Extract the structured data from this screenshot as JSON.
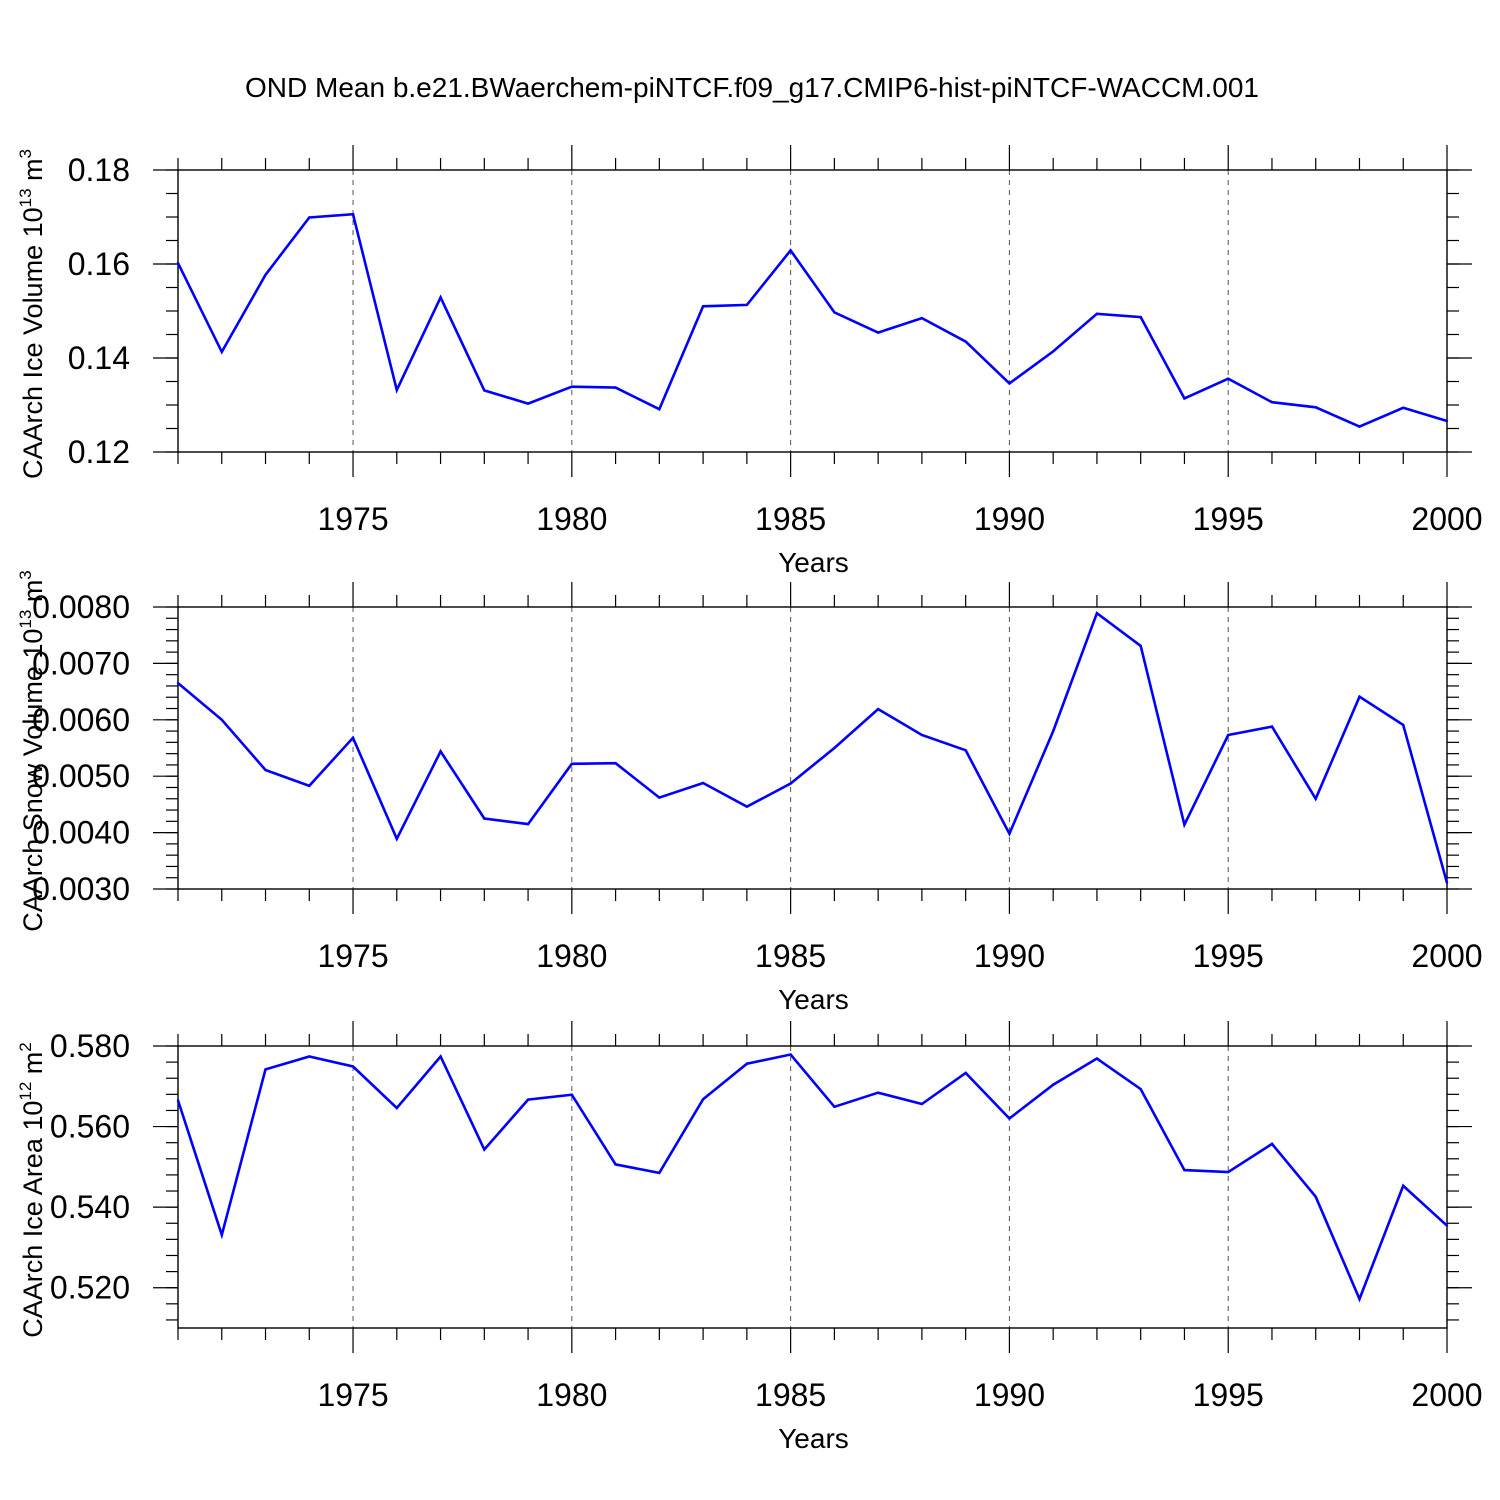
{
  "title": "OND Mean b.e21.BWaerchem-piNTCF.f09_g17.CMIP6-hist-piNTCF-WACCM.001",
  "colors": {
    "line": "#0000ff",
    "frame": "#000000",
    "grid": "#555555"
  },
  "chart_data": [
    {
      "type": "line",
      "ylabel_main": "CAArch Ice Volume 10",
      "ylabel_exp": "13",
      "ylabel_unit": " m",
      "ylabel_unit_exp": "3",
      "xlabel": "Years",
      "xlim": [
        1971,
        2000
      ],
      "ylim": [
        0.12,
        0.18
      ],
      "yticks": [
        0.12,
        0.14,
        0.16,
        0.18
      ],
      "ytick_labels": [
        "0.12",
        "0.14",
        "0.16",
        "0.18"
      ],
      "yminor_step": 0.005,
      "xticks": [
        1975,
        1980,
        1985,
        1990,
        1995,
        2000
      ],
      "xtick_labels": [
        "1975",
        "1980",
        "1985",
        "1990",
        "1995",
        "2000"
      ],
      "grid_x": [
        1975,
        1980,
        1985,
        1990,
        1995
      ],
      "x": [
        1971,
        1972,
        1973,
        1974,
        1975,
        1976,
        1977,
        1978,
        1979,
        1980,
        1981,
        1982,
        1983,
        1984,
        1985,
        1986,
        1987,
        1988,
        1989,
        1990,
        1991,
        1992,
        1993,
        1994,
        1995,
        1996,
        1997,
        1998,
        1999,
        2000
      ],
      "series": [
        {
          "name": "CAArch Ice Volume",
          "values": [
            0.1602,
            0.1413,
            0.1577,
            0.1699,
            0.1706,
            0.1332,
            0.1529,
            0.1331,
            0.1303,
            0.1339,
            0.1337,
            0.1291,
            0.151,
            0.1513,
            0.1629,
            0.1497,
            0.1454,
            0.1485,
            0.1435,
            0.1346,
            0.1414,
            0.1494,
            0.1487,
            0.1314,
            0.1356,
            0.1306,
            0.1295,
            0.1254,
            0.1294,
            0.1266
          ]
        }
      ]
    },
    {
      "type": "line",
      "ylabel_main": "CAArch Snow Volume 10",
      "ylabel_exp": "13",
      "ylabel_unit": " m",
      "ylabel_unit_exp": "3",
      "xlabel": "Years",
      "xlim": [
        1971,
        2000
      ],
      "ylim": [
        0.003,
        0.008
      ],
      "yticks": [
        0.003,
        0.004,
        0.005,
        0.006,
        0.007,
        0.008
      ],
      "ytick_labels": [
        "0.0030",
        "0.0040",
        "0.0050",
        "0.0060",
        "0.0070",
        "0.0080"
      ],
      "yminor_step": 0.0002,
      "xticks": [
        1975,
        1980,
        1985,
        1990,
        1995,
        2000
      ],
      "xtick_labels": [
        "1975",
        "1980",
        "1985",
        "1990",
        "1995",
        "2000"
      ],
      "grid_x": [
        1975,
        1980,
        1985,
        1990,
        1995
      ],
      "x": [
        1971,
        1972,
        1973,
        1974,
        1975,
        1976,
        1977,
        1978,
        1979,
        1980,
        1981,
        1982,
        1983,
        1984,
        1985,
        1986,
        1987,
        1988,
        1989,
        1990,
        1991,
        1992,
        1993,
        1994,
        1995,
        1996,
        1997,
        1998,
        1999,
        2000
      ],
      "series": [
        {
          "name": "CAArch Snow Volume",
          "values": [
            0.00665,
            0.006,
            0.00511,
            0.00483,
            0.00568,
            0.00389,
            0.00544,
            0.00425,
            0.00415,
            0.00522,
            0.00523,
            0.00462,
            0.00488,
            0.00446,
            0.00487,
            0.0055,
            0.00619,
            0.00573,
            0.00546,
            0.00398,
            0.0058,
            0.00789,
            0.00731,
            0.00414,
            0.00573,
            0.00588,
            0.0046,
            0.00641,
            0.00591,
            0.00311
          ]
        }
      ]
    },
    {
      "type": "line",
      "ylabel_main": "CAArch Ice Area 10",
      "ylabel_exp": "12",
      "ylabel_unit": " m",
      "ylabel_unit_exp": "2",
      "xlabel": "Years",
      "xlim": [
        1971,
        2000
      ],
      "ylim": [
        0.51,
        0.58
      ],
      "yticks": [
        0.52,
        0.54,
        0.56,
        0.58
      ],
      "ytick_labels": [
        "0.520",
        "0.540",
        "0.560",
        "0.580"
      ],
      "yminor_step": 0.004,
      "xticks": [
        1975,
        1980,
        1985,
        1990,
        1995,
        2000
      ],
      "xtick_labels": [
        "1975",
        "1980",
        "1985",
        "1990",
        "1995",
        "2000"
      ],
      "grid_x": [
        1975,
        1980,
        1985,
        1990,
        1995
      ],
      "x": [
        1971,
        1972,
        1973,
        1974,
        1975,
        1976,
        1977,
        1978,
        1979,
        1980,
        1981,
        1982,
        1983,
        1984,
        1985,
        1986,
        1987,
        1988,
        1989,
        1990,
        1991,
        1992,
        1993,
        1994,
        1995,
        1996,
        1997,
        1998,
        1999,
        2000
      ],
      "series": [
        {
          "name": "CAArch Ice Area",
          "values": [
            0.5665,
            0.5331,
            0.5742,
            0.5774,
            0.5749,
            0.5646,
            0.5774,
            0.5543,
            0.5667,
            0.5679,
            0.5506,
            0.5485,
            0.5668,
            0.5756,
            0.5779,
            0.5649,
            0.5684,
            0.5656,
            0.5733,
            0.562,
            0.5704,
            0.5769,
            0.5693,
            0.5492,
            0.5487,
            0.5557,
            0.5426,
            0.5172,
            0.5453,
            0.5354
          ]
        }
      ]
    }
  ]
}
